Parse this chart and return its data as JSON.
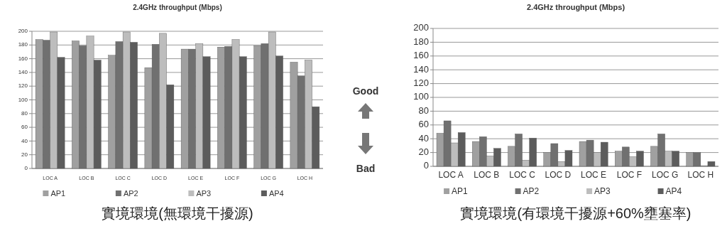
{
  "chart_data": [
    {
      "type": "bar",
      "title": "2.4GHz throughput (Mbps)",
      "categories": [
        "LOC A",
        "LOC B",
        "LOC C",
        "LOC D",
        "LOC E",
        "LOC F",
        "LOC G",
        "LOC H"
      ],
      "series": [
        {
          "name": "AP1",
          "color": "#a0a0a0",
          "values": [
            188,
            186,
            165,
            147,
            174,
            177,
            179,
            155
          ]
        },
        {
          "name": "AP2",
          "color": "#707070",
          "values": [
            187,
            179,
            185,
            181,
            174,
            178,
            182,
            135
          ]
        },
        {
          "name": "AP3",
          "color": "#bdbdbd",
          "values": [
            199,
            193,
            199,
            197,
            182,
            188,
            199,
            158
          ]
        },
        {
          "name": "AP4",
          "color": "#5c5c5c",
          "values": [
            162,
            158,
            184,
            122,
            163,
            163,
            164,
            90
          ]
        }
      ],
      "ylim": [
        0,
        200
      ],
      "yticks": [
        0,
        20,
        40,
        60,
        80,
        100,
        120,
        140,
        160,
        180,
        200
      ],
      "grid": "y",
      "legend": "bottom",
      "annotations": [
        "實境環境(無環境干擾源)"
      ]
    },
    {
      "type": "other",
      "annotations": [
        "Good",
        "Bad"
      ]
    },
    {
      "type": "bar",
      "title": "2.4GHz throughput (Mbps)",
      "categories": [
        "LOC A",
        "LOC B",
        "LOC C",
        "LOC D",
        "LOC E",
        "LOC F",
        "LOC G",
        "LOC H"
      ],
      "series": [
        {
          "name": "AP1",
          "color": "#a0a0a0",
          "values": [
            48,
            36,
            29,
            20,
            36,
            22,
            29,
            20
          ]
        },
        {
          "name": "AP2",
          "color": "#707070",
          "values": [
            66,
            43,
            47,
            33,
            38,
            28,
            47,
            20
          ]
        },
        {
          "name": "AP3",
          "color": "#bdbdbd",
          "values": [
            34,
            15,
            9,
            7,
            20,
            14,
            22,
            1
          ]
        },
        {
          "name": "AP4",
          "color": "#5c5c5c",
          "values": [
            49,
            26,
            41,
            23,
            35,
            22,
            22,
            7
          ]
        }
      ],
      "ylim": [
        0,
        200
      ],
      "yticks": [
        0,
        20,
        40,
        60,
        80,
        100,
        120,
        140,
        160,
        180,
        200
      ],
      "grid": "y",
      "legend": "bottom",
      "annotations": [
        "實境環境(有環境干擾源+60%壅塞率)"
      ]
    }
  ]
}
